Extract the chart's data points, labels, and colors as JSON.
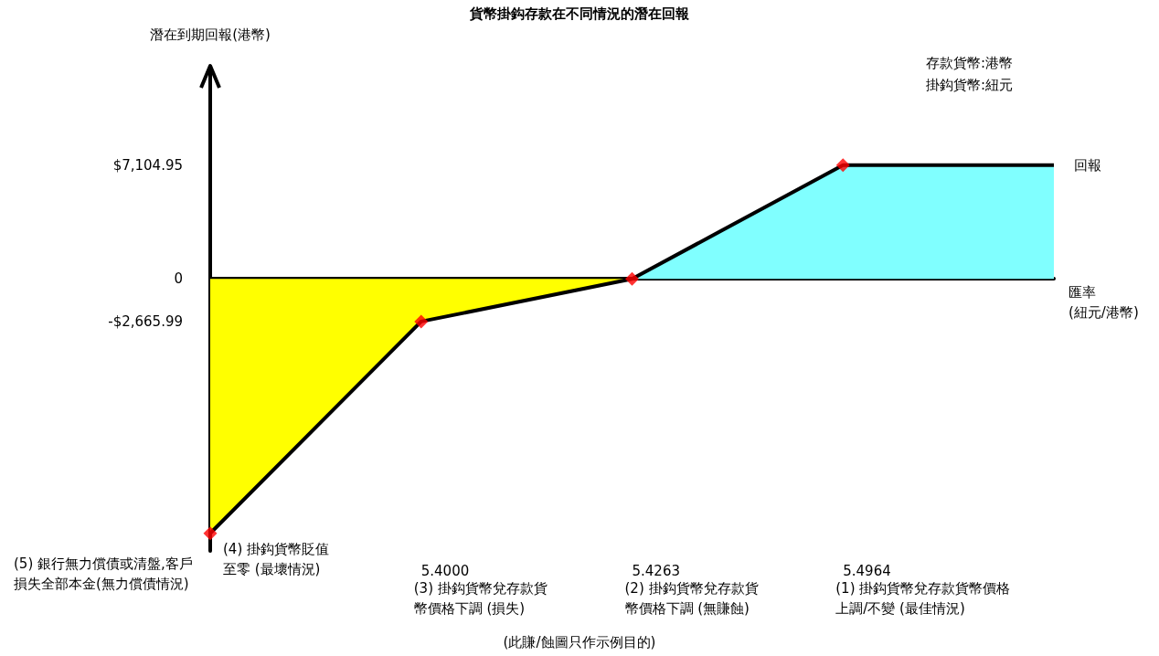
{
  "chart_data": {
    "type": "line",
    "title": "貨幣掛鈎存款在不同情況的潛在回報",
    "xlabel": "匯率\n(紐元/港幣)",
    "ylabel": "潛在到期回報(港幣)",
    "categories": [
      null,
      "5.4000",
      "5.4263",
      "5.4964",
      null
    ],
    "ylim": [
      -17000,
      12000
    ],
    "yticks": [
      {
        "value": 7104.95,
        "label": "$7,104.95"
      },
      0,
      {
        "value": -2665.99,
        "label": "-$2,665.99"
      }
    ],
    "series": [
      {
        "type": "area",
        "color": "#ffff00",
        "values": [
          -15900,
          -2665.99,
          0,
          null,
          null
        ]
      },
      {
        "type": "area",
        "color": "#80ffff",
        "values": [
          null,
          null,
          0,
          7104.95,
          7104.95
        ]
      },
      {
        "name": "回報",
        "color": "#000000",
        "marker": "none",
        "values": [
          -15900,
          -2665.99,
          0,
          7104.95,
          7104.95
        ]
      },
      {
        "type": "scatter",
        "color": "#ff0000",
        "marker": "diamond",
        "values": [
          -15900,
          -2665.99,
          0,
          7104.95,
          null
        ]
      }
    ],
    "annotations": [
      "存款貨幣:港幣",
      "掛鈎貨幣:紐元",
      "(此賺/蝕圖只作示例目的)",
      "(4) 掛鈎貨幣貶值至零 (最壞情況)",
      "(5) 銀行無力償債或清盤,客戶損失全部本金(無力償債情況)",
      "(1) 掛鈎貨幣兌存款貨幣價格上調/不變 (最佳情況)",
      "(2) 掛鈎貨幣兌存款貨幣價格下調 (無賺蝕)",
      "(3) 掛鈎貨幣兌存款貨幣價格下調 (損失)"
    ]
  }
}
